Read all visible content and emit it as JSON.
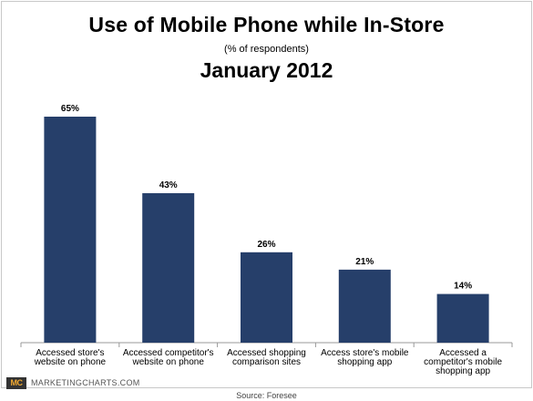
{
  "header": {
    "title": "Use of Mobile Phone while In-Store",
    "subtitle": "(% of respondents)",
    "date": "January 2012"
  },
  "footer": {
    "logo": "MC",
    "brand": "MARKETINGCHARTS.COM",
    "source": "Source: Foresee"
  },
  "colors": {
    "bar": "#263f6a",
    "axis": "#999999"
  },
  "chart_data": {
    "type": "bar",
    "title": "Use of Mobile Phone while In-Store",
    "subtitle": "(% of respondents)",
    "xlabel": "",
    "ylabel": "",
    "ylim": [
      0,
      70
    ],
    "grid": false,
    "categories": [
      [
        "Accessed store's",
        "website on phone"
      ],
      [
        "Accessed competitor's",
        "website on phone"
      ],
      [
        "Accessed shopping",
        "comparison sites"
      ],
      [
        "Access store's mobile",
        "shopping app"
      ],
      [
        "Accessed a",
        "competitor's mobile",
        "shopping app"
      ]
    ],
    "values": [
      65,
      43,
      26,
      21,
      14
    ],
    "value_labels": [
      "65%",
      "43%",
      "26%",
      "21%",
      "14%"
    ]
  }
}
